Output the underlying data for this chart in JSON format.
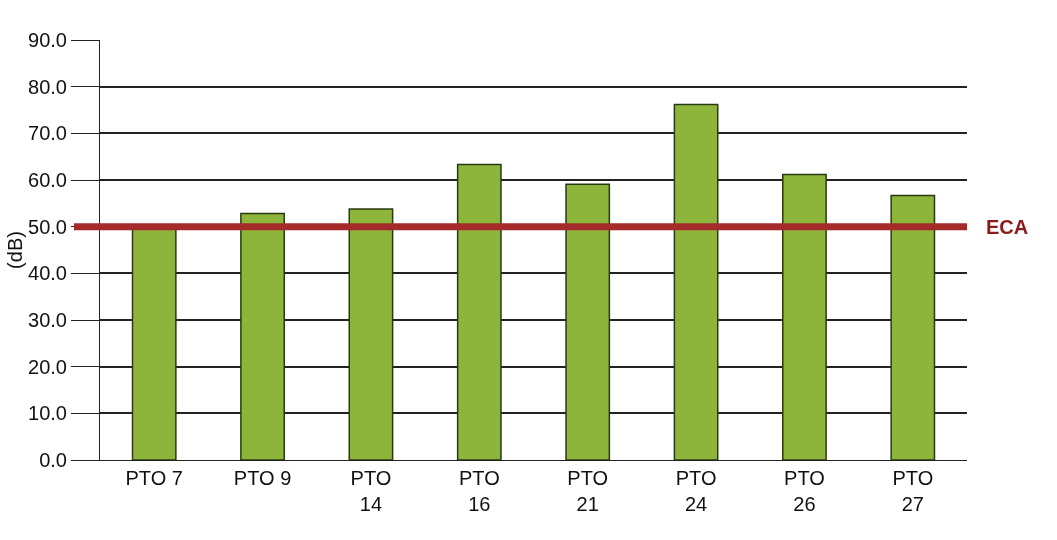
{
  "chart_data": {
    "type": "bar",
    "ylabel": "(dB)",
    "categories": [
      "PTO 7",
      "PTO 9",
      "PTO 14",
      "PTO 16",
      "PTO 21",
      "PTO 24",
      "PTO 26",
      "PTO 27"
    ],
    "values": [
      49.6,
      52.8,
      53.8,
      63.3,
      59.1,
      76.2,
      61.2,
      56.7
    ],
    "color": "#8db53c",
    "ylim": [
      0,
      90
    ],
    "yticks": [
      {
        "value": 0,
        "label": "0.0"
      },
      {
        "value": 10,
        "label": "10.0"
      },
      {
        "value": 20,
        "label": "20.0"
      },
      {
        "value": 30,
        "label": "30.0"
      },
      {
        "value": 40,
        "label": "40.0"
      },
      {
        "value": 50,
        "label": "50.0"
      },
      {
        "value": 60,
        "label": "60.0"
      },
      {
        "value": 70,
        "label": "70.0"
      },
      {
        "value": 80,
        "label": "80.0"
      },
      {
        "value": 90,
        "label": "90.0"
      }
    ],
    "grid": "y",
    "ref_lines": [
      {
        "axis": "y",
        "value": 50,
        "label": "ECA",
        "color": "#a52a2a"
      }
    ]
  }
}
